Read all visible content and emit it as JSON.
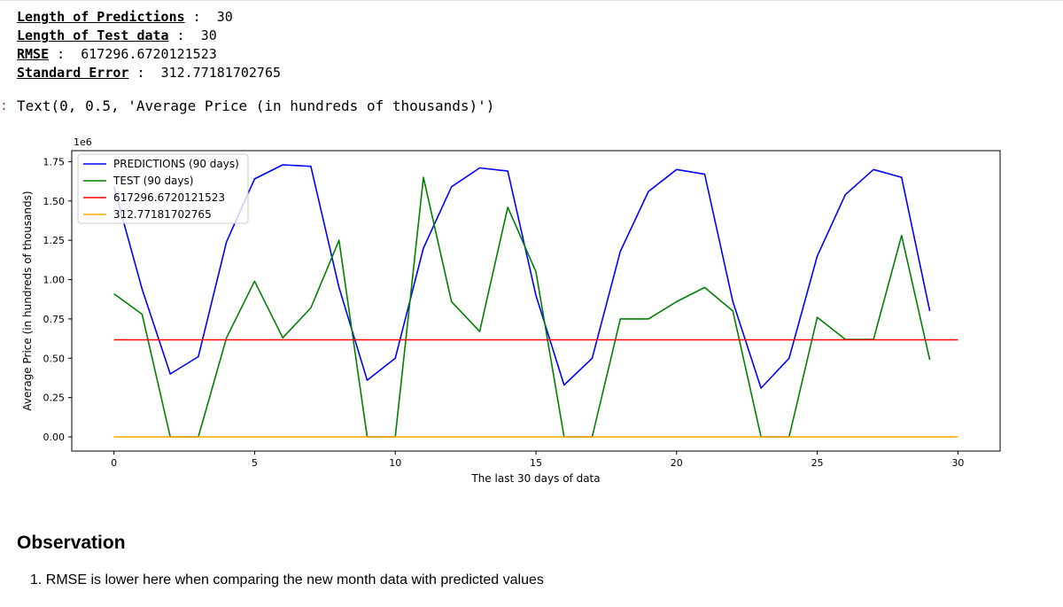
{
  "stats": [
    {
      "key": "Length of Predictions",
      "sep": " :  ",
      "value": "30"
    },
    {
      "key": "Length of Test data",
      "sep": " :  ",
      "value": "30"
    },
    {
      "key": "RMSE",
      "sep": " :  ",
      "value": "617296.6720121523"
    },
    {
      "key": "Standard Error",
      "sep": " :  ",
      "value": "312.77181702765"
    }
  ],
  "output_text": "Text(0, 0.5, 'Average Price (in hundreds of thousands)')",
  "chart_data": {
    "type": "line",
    "xlabel": "The last 30 days of data",
    "ylabel": "Average Price (in hundreds of thousands)",
    "offset_label": "1e6",
    "xlim": [
      -1.5,
      31.5
    ],
    "ylim": [
      -0.09,
      1.82
    ],
    "x_ticks": [
      0,
      5,
      10,
      15,
      20,
      25,
      30
    ],
    "y_ticks": [
      0.0,
      0.25,
      0.5,
      0.75,
      1.0,
      1.25,
      1.5,
      1.75
    ],
    "y_tick_labels": [
      "0.00",
      "0.25",
      "0.50",
      "0.75",
      "1.00",
      "1.25",
      "1.50",
      "1.75"
    ],
    "grid": false,
    "legend_position": "top-left",
    "series": [
      {
        "name": "PREDICTIONS (90 days)",
        "color": "#0000ff",
        "x": [
          0,
          1,
          2,
          3,
          4,
          5,
          6,
          7,
          8,
          9,
          10,
          11,
          12,
          13,
          14,
          15,
          16,
          17,
          18,
          19,
          20,
          21,
          22,
          23,
          24,
          25,
          26,
          27,
          28,
          29
        ],
        "y": [
          1.59,
          0.94,
          0.4,
          0.51,
          1.24,
          1.64,
          1.73,
          1.72,
          0.95,
          0.36,
          0.5,
          1.2,
          1.59,
          1.71,
          1.69,
          0.9,
          0.33,
          0.5,
          1.18,
          1.56,
          1.7,
          1.67,
          0.86,
          0.31,
          0.5,
          1.15,
          1.54,
          1.7,
          1.65,
          0.8
        ]
      },
      {
        "name": "TEST (90 days)",
        "color": "#008000",
        "x": [
          0,
          1,
          2,
          3,
          4,
          5,
          6,
          7,
          8,
          9,
          10,
          11,
          12,
          13,
          14,
          15,
          16,
          17,
          18,
          19,
          20,
          21,
          22,
          23,
          24,
          25,
          26,
          27,
          28,
          29
        ],
        "y": [
          0.91,
          0.78,
          0.0,
          0.0,
          0.63,
          0.99,
          0.63,
          0.82,
          1.25,
          0.0,
          0.0,
          1.65,
          0.86,
          0.67,
          1.46,
          1.05,
          0.0,
          0.0,
          0.75,
          0.75,
          0.86,
          0.95,
          0.8,
          0.0,
          0.0,
          0.76,
          0.62,
          0.62,
          1.28,
          0.49
        ]
      },
      {
        "name": "617296.6720121523",
        "color": "#ff0000",
        "x": [
          0,
          30
        ],
        "y": [
          0.617,
          0.617
        ]
      },
      {
        "name": "312.77181702765",
        "color": "#ffa500",
        "x": [
          0,
          30
        ],
        "y": [
          0.0003,
          0.0003
        ]
      }
    ]
  },
  "observation": {
    "title": "Observation",
    "items": [
      "RMSE is lower here when comparing the new month data with predicted values"
    ]
  }
}
